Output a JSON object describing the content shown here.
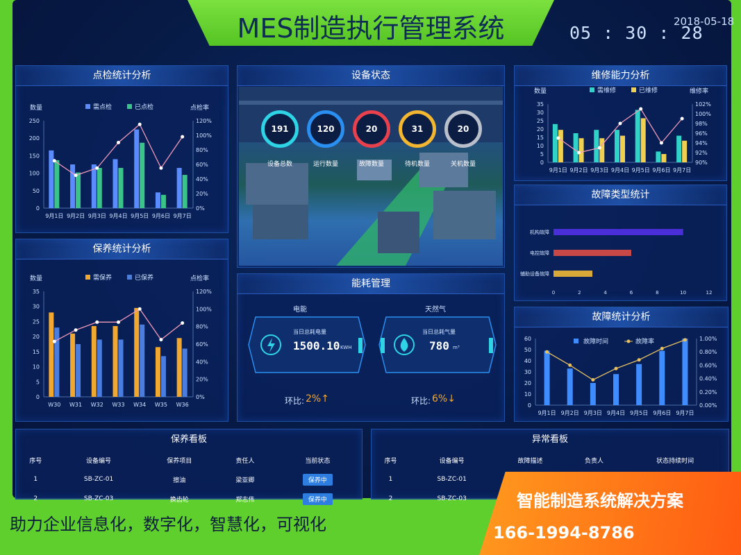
{
  "header": {
    "title": "MES制造执行管理系统",
    "clock": "05 : 30 : 28",
    "date": "2018-05-18"
  },
  "inspection": {
    "title": "点检统计分析",
    "ylabel_left": "数量",
    "ylabel_right": "点检率",
    "legend": [
      "需点检",
      "已点检"
    ],
    "colors": [
      "#5b8cff",
      "#3ac48a"
    ],
    "chart_data": {
      "type": "bar",
      "categories": [
        "9月1日",
        "9月2日",
        "9月3日",
        "9月4日",
        "9月5日",
        "9月6日",
        "9月7日"
      ],
      "series": [
        {
          "name": "需点检",
          "values": [
            165,
            125,
            125,
            140,
            225,
            45,
            115
          ]
        },
        {
          "name": "已点检",
          "values": [
            137,
            102,
            115,
            115,
            187,
            38,
            95
          ]
        }
      ],
      "line": [
        65,
        45,
        55,
        90,
        115,
        55,
        98
      ],
      "ylim": [
        0,
        250
      ],
      "yticks": [
        "0",
        "50",
        "100",
        "150",
        "200",
        "250"
      ],
      "y2ticks": [
        "0%",
        "20%",
        "40%",
        "60%",
        "80%",
        "100%",
        "120%"
      ]
    }
  },
  "maintenance": {
    "title": "保养统计分析",
    "ylabel_left": "数量",
    "ylabel_right": "点检率",
    "legend": [
      "需保养",
      "已保养"
    ],
    "colors": [
      "#f0a830",
      "#4a7de0"
    ],
    "chart_data": {
      "type": "bar",
      "categories": [
        "W30",
        "W31",
        "W32",
        "W33",
        "W34",
        "W35",
        "W36"
      ],
      "series": [
        {
          "name": "需保养",
          "values": [
            28,
            21,
            23.5,
            23.5,
            29.5,
            16.5,
            19.5
          ]
        },
        {
          "name": "已保养",
          "values": [
            23,
            17.5,
            19,
            19,
            24,
            13.5,
            16
          ]
        }
      ],
      "line": [
        63,
        76,
        85,
        85,
        100,
        65,
        84
      ],
      "ylim": [
        0,
        35
      ],
      "yticks": [
        "0",
        "5",
        "10",
        "15",
        "20",
        "25",
        "30",
        "35"
      ],
      "y2ticks": [
        "0%",
        "20%",
        "40%",
        "60%",
        "80%",
        "100%",
        "120%"
      ]
    }
  },
  "equipment": {
    "title": "设备状态",
    "rings": [
      {
        "value": "191",
        "label": "设备总数",
        "color": "#2fd3e6"
      },
      {
        "value": "120",
        "label": "运行数量",
        "color": "#2a8ff0"
      },
      {
        "value": "20",
        "label": "故障数量",
        "color": "#e8414d"
      },
      {
        "value": "31",
        "label": "待机数量",
        "color": "#f2b630"
      },
      {
        "value": "20",
        "label": "关机数量",
        "color": "#b9c0cc"
      }
    ]
  },
  "energy": {
    "title": "能耗管理",
    "electric": {
      "name": "电能",
      "caption": "当日总耗电量",
      "value": "1500.10",
      "unit": "KWH",
      "ratio_label": "环比:",
      "ratio": "2%↑"
    },
    "gas": {
      "name": "天然气",
      "caption": "当日总耗气量",
      "value": "780",
      "unit": "m³",
      "ratio_label": "环比:",
      "ratio": "6%↓"
    }
  },
  "repair": {
    "title": "维修能力分析",
    "ylabel_left": "数量",
    "ylabel_right": "维修率",
    "legend": [
      "需维修",
      "已维修"
    ],
    "colors": [
      "#2fd3c8",
      "#f0d050"
    ],
    "chart_data": {
      "type": "bar",
      "categories": [
        "9月1日",
        "9月2日",
        "9月3日",
        "9月4日",
        "9月5日",
        "9月6日",
        "9月7日"
      ],
      "series": [
        {
          "name": "需维修",
          "values": [
            23,
            17.5,
            19.5,
            19.5,
            31.5,
            6.5,
            16
          ]
        },
        {
          "name": "已维修",
          "values": [
            19.5,
            14.5,
            14.5,
            16,
            26.5,
            5,
            13
          ]
        }
      ],
      "line": [
        95,
        92,
        93,
        98,
        101,
        94,
        99
      ],
      "ylim": [
        0,
        35
      ],
      "yticks": [
        "0",
        "5",
        "10",
        "15",
        "20",
        "25",
        "30",
        "35"
      ],
      "y2ticks": [
        "90%",
        "92%",
        "94%",
        "96%",
        "98%",
        "100%",
        "102%"
      ]
    }
  },
  "fault_type": {
    "title": "故障类型统计",
    "chart_data": {
      "type": "bar",
      "categories": [
        "机构故障",
        "电控故障",
        "辅助设备故障"
      ],
      "values": [
        10,
        6,
        3
      ],
      "colors": [
        "#4a2ed8",
        "#c84848",
        "#d8a838"
      ],
      "xlim": [
        0,
        12
      ],
      "xticks": [
        "0",
        "2",
        "4",
        "6",
        "8",
        "10",
        "12"
      ]
    }
  },
  "fault_stats": {
    "title": "故障统计分析",
    "legend": [
      "故障时间",
      "故障率"
    ],
    "colors": [
      "#3f8cff",
      "#e8c060"
    ],
    "chart_data": {
      "type": "bar",
      "categories": [
        "9月1日",
        "9月2日",
        "9月3日",
        "9月4日",
        "9月5日",
        "9月6日",
        "9月7日"
      ],
      "series": [
        {
          "name": "故障时间",
          "values": [
            49,
            33,
            20,
            28,
            37,
            49,
            60
          ]
        }
      ],
      "line": [
        0.8,
        0.6,
        0.38,
        0.55,
        0.68,
        0.85,
        0.98
      ],
      "ylim": [
        0,
        60
      ],
      "yticks": [
        "0",
        "10",
        "20",
        "30",
        "40",
        "50",
        "60"
      ],
      "y2ticks": [
        "0.00%",
        "0.20%",
        "0.40%",
        "0.60%",
        "0.80%",
        "1.00%"
      ]
    }
  },
  "maint_board": {
    "title": "保养看板",
    "headers": [
      "序号",
      "设备编号",
      "保养项目",
      "责任人",
      "当前状态"
    ],
    "rows": [
      [
        "1",
        "SB-ZC-01",
        "擦油",
        "梁亚卿",
        "保养中"
      ],
      [
        "2",
        "SB-ZC-03",
        "换齿轮",
        "郑志伟",
        "保养中"
      ]
    ]
  },
  "abnormal_board": {
    "title": "异常看板",
    "headers": [
      "序号",
      "设备编号",
      "故障描述",
      "负责人",
      "状态持续时间"
    ],
    "rows": [
      [
        "1",
        "SB-ZC-01"
      ],
      [
        "2",
        "SB-ZC-03"
      ]
    ]
  },
  "footer": {
    "slogan": "助力企业信息化，数字化，智慧化，可视化",
    "promo_title": "智能制造系统解决方案",
    "promo_phone": "166-1994-8786"
  }
}
